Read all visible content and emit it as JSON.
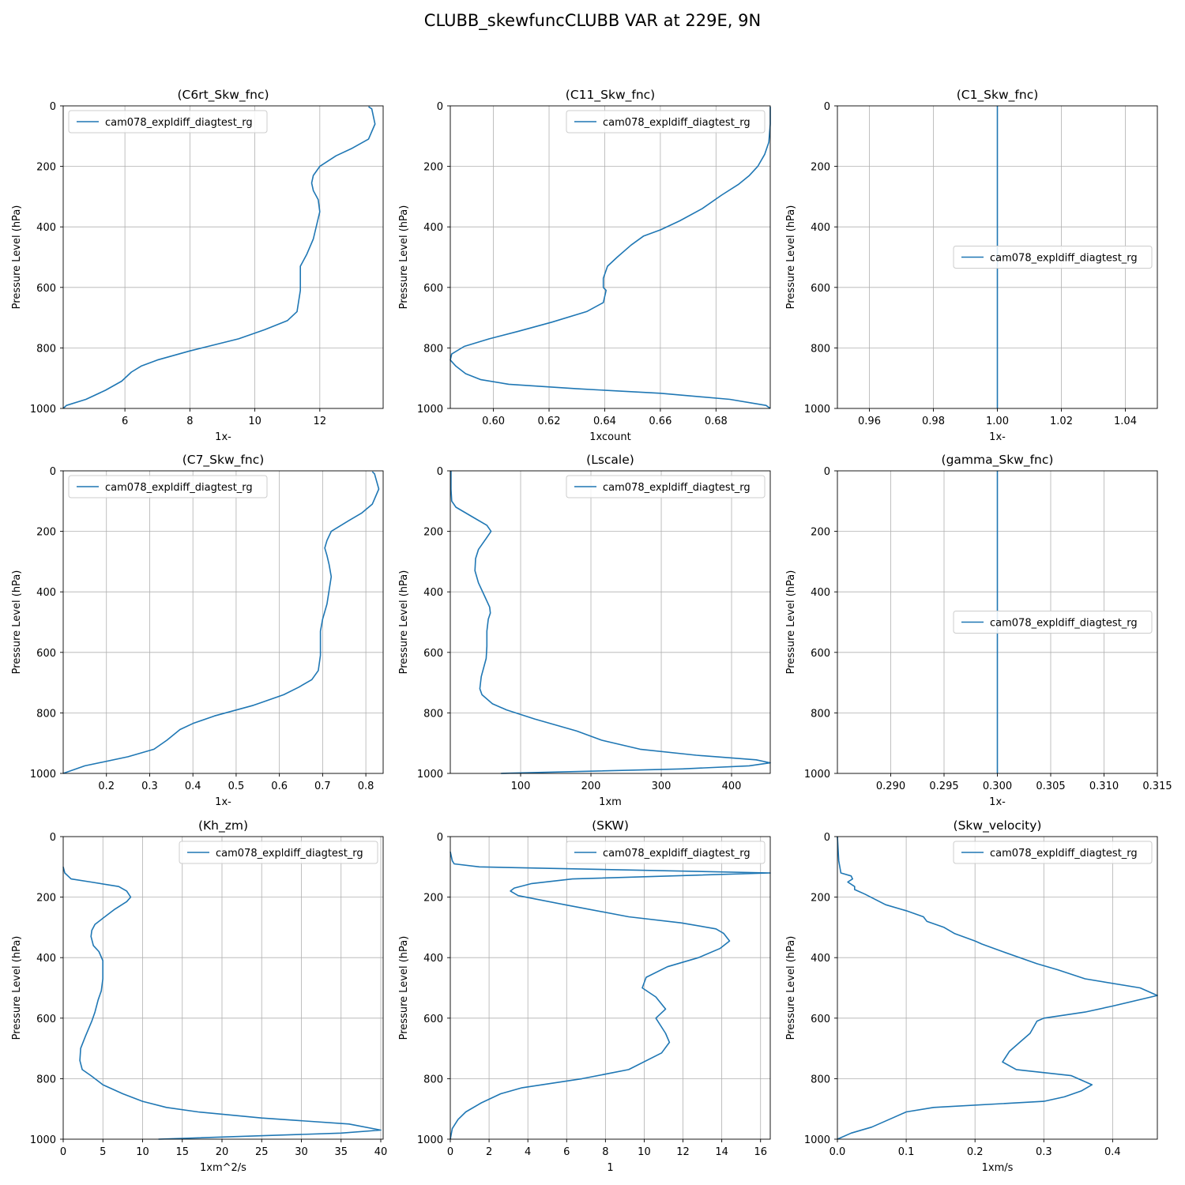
{
  "figure": {
    "title": "CLUBB_skewfuncCLUBB VAR at 229E, 9N"
  },
  "chart_data": [
    {
      "type": "line",
      "title": "(C6rt_Skw_fnc)",
      "xlabel": "1x-",
      "ylabel": "Pressure Level (hPa)",
      "xlim": [
        4.1,
        13.95
      ],
      "ylim": [
        1000,
        0
      ],
      "xticks": [
        6,
        8,
        10,
        12
      ],
      "yticks": [
        0,
        200,
        400,
        600,
        800,
        1000
      ],
      "xtick_labels": [
        "6",
        "8",
        "10",
        "12"
      ],
      "ytick_labels": [
        "0",
        "200",
        "400",
        "600",
        "800",
        "1000"
      ],
      "grid": true,
      "legend": {
        "position": "upper-left",
        "entries": [
          "cam078_expldiff_diagtest_rg"
        ]
      },
      "series": [
        {
          "name": "cam078_expldiff_diagtest_rg",
          "color": "#1f77b4",
          "x": [
            13.5,
            13.6,
            13.7,
            13.5,
            13.0,
            12.5,
            12.0,
            11.8,
            11.75,
            11.8,
            11.95,
            12.0,
            11.8,
            11.6,
            11.4,
            11.4,
            11.4,
            11.3,
            11.0,
            10.3,
            9.5,
            8.0,
            7.0,
            6.5,
            6.2,
            5.9,
            5.4,
            4.8,
            4.2,
            4.1
          ],
          "y": [
            3,
            10,
            60,
            110,
            140,
            165,
            200,
            230,
            255,
            280,
            310,
            350,
            440,
            490,
            530,
            570,
            610,
            680,
            710,
            740,
            770,
            810,
            840,
            860,
            880,
            910,
            940,
            970,
            990,
            1000
          ]
        }
      ]
    },
    {
      "type": "line",
      "title": "(C11_Skw_fnc)",
      "xlabel": "1xcount",
      "ylabel": "Pressure Level (hPa)",
      "xlim": [
        0.5845,
        0.6995
      ],
      "ylim": [
        1000,
        0
      ],
      "xticks": [
        0.6,
        0.62,
        0.64,
        0.66,
        0.68
      ],
      "yticks": [
        0,
        200,
        400,
        600,
        800,
        1000
      ],
      "xtick_labels": [
        "0.60",
        "0.62",
        "0.64",
        "0.66",
        "0.68"
      ],
      "ytick_labels": [
        "0",
        "200",
        "400",
        "600",
        "800",
        "1000"
      ],
      "grid": true,
      "legend": {
        "position": "upper-right",
        "entries": [
          "cam078_expldiff_diagtest_rg"
        ]
      },
      "series": [
        {
          "name": "cam078_expldiff_diagtest_rg",
          "color": "#1f77b4",
          "x": [
            0.6995,
            0.6995,
            0.699,
            0.6975,
            0.695,
            0.692,
            0.688,
            0.682,
            0.675,
            0.667,
            0.66,
            0.654,
            0.6495,
            0.6445,
            0.641,
            0.6395,
            0.6395,
            0.6405,
            0.6395,
            0.6335,
            0.621,
            0.609,
            0.5985,
            0.5895,
            0.585,
            0.5845,
            0.5865,
            0.59,
            0.5955,
            0.6055,
            0.63,
            0.66,
            0.685,
            0.698,
            0.6995
          ],
          "y": [
            3,
            60,
            120,
            160,
            200,
            230,
            260,
            295,
            340,
            380,
            410,
            430,
            460,
            500,
            530,
            570,
            600,
            610,
            650,
            680,
            715,
            745,
            770,
            795,
            820,
            840,
            860,
            885,
            905,
            920,
            935,
            950,
            970,
            990,
            1000
          ]
        }
      ]
    },
    {
      "type": "line",
      "title": "(C1_Skw_fnc)",
      "xlabel": "1x-",
      "ylabel": "Pressure Level (hPa)",
      "xlim": [
        0.95,
        1.05
      ],
      "ylim": [
        1000,
        0
      ],
      "xticks": [
        0.96,
        0.98,
        1.0,
        1.02,
        1.04
      ],
      "yticks": [
        0,
        200,
        400,
        600,
        800,
        1000
      ],
      "xtick_labels": [
        "0.96",
        "0.98",
        "1.00",
        "1.02",
        "1.04"
      ],
      "ytick_labels": [
        "0",
        "200",
        "400",
        "600",
        "800",
        "1000"
      ],
      "grid": true,
      "legend": {
        "position": "center-right",
        "entries": [
          "cam078_expldiff_diagtest_rg"
        ]
      },
      "series": [
        {
          "name": "cam078_expldiff_diagtest_rg",
          "color": "#1f77b4",
          "x": [
            1.0,
            1.0
          ],
          "y": [
            0,
            1000
          ]
        }
      ]
    },
    {
      "type": "line",
      "title": "(C7_Skw_fnc)",
      "xlabel": "1x-",
      "ylabel": "Pressure Level (hPa)",
      "xlim": [
        0.1,
        0.84
      ],
      "ylim": [
        1000,
        0
      ],
      "xticks": [
        0.2,
        0.3,
        0.4,
        0.5,
        0.6,
        0.7,
        0.8
      ],
      "yticks": [
        0,
        200,
        400,
        600,
        800,
        1000
      ],
      "xtick_labels": [
        "0.2",
        "0.3",
        "0.4",
        "0.5",
        "0.6",
        "0.7",
        "0.8"
      ],
      "ytick_labels": [
        "0",
        "200",
        "400",
        "600",
        "800",
        "1000"
      ],
      "grid": true,
      "legend": {
        "position": "upper-left",
        "entries": [
          "cam078_expldiff_diagtest_rg"
        ]
      },
      "series": [
        {
          "name": "cam078_expldiff_diagtest_rg",
          "color": "#1f77b4",
          "x": [
            0.815,
            0.82,
            0.83,
            0.815,
            0.79,
            0.76,
            0.72,
            0.71,
            0.705,
            0.71,
            0.715,
            0.72,
            0.71,
            0.7,
            0.695,
            0.695,
            0.695,
            0.69,
            0.675,
            0.645,
            0.61,
            0.54,
            0.45,
            0.4,
            0.37,
            0.34,
            0.31,
            0.25,
            0.15,
            0.1
          ],
          "y": [
            3,
            10,
            60,
            110,
            140,
            165,
            200,
            230,
            255,
            280,
            310,
            350,
            440,
            490,
            530,
            570,
            610,
            660,
            690,
            715,
            740,
            775,
            810,
            835,
            855,
            890,
            920,
            945,
            975,
            1000
          ]
        }
      ]
    },
    {
      "type": "line",
      "title": "(Lscale)",
      "xlabel": "1xm",
      "ylabel": "Pressure Level (hPa)",
      "xlim": [
        0,
        455
      ],
      "ylim": [
        1000,
        0
      ],
      "xticks": [
        100,
        200,
        300,
        400
      ],
      "yticks": [
        0,
        200,
        400,
        600,
        800,
        1000
      ],
      "xtick_labels": [
        "100",
        "200",
        "300",
        "400"
      ],
      "ytick_labels": [
        "0",
        "200",
        "400",
        "600",
        "800",
        "1000"
      ],
      "grid": true,
      "legend": {
        "position": "upper-right",
        "entries": [
          "cam078_expldiff_diagtest_rg"
        ]
      },
      "series": [
        {
          "name": "cam078_expldiff_diagtest_rg",
          "color": "#1f77b4",
          "x": [
            1,
            1,
            2,
            8,
            30,
            52,
            58,
            52,
            40,
            36,
            35,
            40,
            48,
            56,
            57,
            54,
            52,
            52,
            51,
            44,
            42,
            45,
            60,
            80,
            120,
            180,
            215,
            270,
            350,
            435,
            455,
            425,
            330,
            72
          ],
          "y": [
            0,
            60,
            100,
            120,
            150,
            180,
            200,
            220,
            260,
            290,
            330,
            370,
            410,
            450,
            470,
            490,
            530,
            580,
            620,
            680,
            720,
            740,
            770,
            790,
            820,
            860,
            890,
            920,
            940,
            955,
            965,
            975,
            985,
            1000
          ]
        }
      ]
    },
    {
      "type": "line",
      "title": "(gamma_Skw_fnc)",
      "xlabel": "1x-",
      "ylabel": "Pressure Level (hPa)",
      "xlim": [
        0.285,
        0.315
      ],
      "ylim": [
        1000,
        0
      ],
      "xticks": [
        0.29,
        0.295,
        0.3,
        0.305,
        0.31,
        0.315
      ],
      "yticks": [
        0,
        200,
        400,
        600,
        800,
        1000
      ],
      "xtick_labels": [
        "0.290",
        "0.295",
        "0.300",
        "0.305",
        "0.310",
        "0.315"
      ],
      "ytick_labels": [
        "0",
        "200",
        "400",
        "600",
        "800",
        "1000"
      ],
      "grid": true,
      "legend": {
        "position": "center-right",
        "entries": [
          "cam078_expldiff_diagtest_rg"
        ]
      },
      "series": [
        {
          "name": "cam078_expldiff_diagtest_rg",
          "color": "#1f77b4",
          "x": [
            0.3,
            0.3
          ],
          "y": [
            0,
            1000
          ]
        }
      ]
    },
    {
      "type": "line",
      "title": "(Kh_zm)",
      "xlabel": "1xm^2/s",
      "ylabel": "Pressure Level (hPa)",
      "xlim": [
        0,
        40.3
      ],
      "ylim": [
        1000,
        0
      ],
      "xticks": [
        0,
        5,
        10,
        15,
        20,
        25,
        30,
        35,
        40
      ],
      "yticks": [
        0,
        200,
        400,
        600,
        800,
        1000
      ],
      "xtick_labels": [
        "0",
        "5",
        "10",
        "15",
        "20",
        "25",
        "30",
        "35",
        "40"
      ],
      "ytick_labels": [
        "0",
        "200",
        "400",
        "600",
        "800",
        "1000"
      ],
      "grid": true,
      "legend": {
        "position": "upper-right",
        "entries": [
          "cam078_expldiff_diagtest_rg"
        ]
      },
      "series": [
        {
          "name": "cam078_expldiff_diagtest_rg",
          "color": "#1f77b4",
          "x": [
            0,
            0.2,
            1,
            3.5,
            7,
            8,
            8.5,
            8,
            6.5,
            5,
            4,
            3.6,
            3.5,
            3.8,
            4.5,
            5,
            5,
            4.8,
            4.4,
            4,
            3.6,
            2.8,
            2.2,
            2.1,
            2.4,
            3.5,
            5,
            7.5,
            10,
            13,
            17,
            25,
            36,
            40,
            35,
            12
          ],
          "y": [
            100,
            120,
            140,
            150,
            165,
            180,
            200,
            215,
            240,
            270,
            290,
            310,
            330,
            360,
            380,
            410,
            470,
            510,
            540,
            580,
            610,
            660,
            700,
            740,
            770,
            790,
            820,
            850,
            875,
            895,
            910,
            930,
            950,
            970,
            980,
            1000
          ]
        }
      ]
    },
    {
      "type": "line",
      "title": "(SKW)",
      "xlabel": "1",
      "ylabel": "Pressure Level (hPa)",
      "xlim": [
        0,
        16.5
      ],
      "ylim": [
        1000,
        0
      ],
      "xticks": [
        0,
        2,
        4,
        6,
        8,
        10,
        12,
        14,
        16
      ],
      "yticks": [
        0,
        200,
        400,
        600,
        800,
        1000
      ],
      "xtick_labels": [
        "0",
        "2",
        "4",
        "6",
        "8",
        "10",
        "12",
        "14",
        "16"
      ],
      "ytick_labels": [
        "0",
        "200",
        "400",
        "600",
        "800",
        "1000"
      ],
      "grid": true,
      "legend": {
        "position": "upper-right",
        "entries": [
          "cam078_expldiff_diagtest_rg"
        ]
      },
      "series": [
        {
          "name": "cam078_expldiff_diagtest_rg",
          "color": "#1f77b4",
          "x": [
            0,
            0.1,
            0.2,
            1.5,
            16.5,
            6.3,
            4.2,
            3.3,
            3.1,
            3.5,
            5.9,
            9.2,
            11.9,
            13.7,
            14.1,
            14.4,
            13.9,
            12.8,
            11.2,
            10.1,
            9.9,
            10.6,
            11.1,
            10.6,
            11.1,
            11.3,
            10.9,
            9.2,
            6.8,
            3.7,
            2.6,
            1.6,
            0.8,
            0.4,
            0.1,
            0
          ],
          "y": [
            50,
            80,
            90,
            100,
            120,
            140,
            155,
            170,
            180,
            195,
            225,
            265,
            285,
            305,
            320,
            345,
            370,
            400,
            430,
            465,
            500,
            530,
            570,
            600,
            650,
            680,
            715,
            770,
            800,
            830,
            850,
            880,
            910,
            935,
            965,
            1000
          ]
        }
      ]
    },
    {
      "type": "line",
      "title": "(Skw_velocity)",
      "xlabel": "1xm/s",
      "ylabel": "Pressure Level (hPa)",
      "xlim": [
        0,
        0.465
      ],
      "ylim": [
        1000,
        0
      ],
      "xticks": [
        0.0,
        0.1,
        0.2,
        0.3,
        0.4
      ],
      "yticks": [
        0,
        200,
        400,
        600,
        800,
        1000
      ],
      "xtick_labels": [
        "0.0",
        "0.1",
        "0.2",
        "0.3",
        "0.4"
      ],
      "ytick_labels": [
        "0",
        "200",
        "400",
        "600",
        "800",
        "1000"
      ],
      "grid": true,
      "legend": {
        "position": "upper-right",
        "entries": [
          "cam078_expldiff_diagtest_rg"
        ]
      },
      "series": [
        {
          "name": "cam078_expldiff_diagtest_rg",
          "color": "#1f77b4",
          "x": [
            0,
            0.002,
            0.005,
            0.02,
            0.022,
            0.015,
            0.025,
            0.025,
            0.04,
            0.07,
            0.1,
            0.125,
            0.13,
            0.155,
            0.17,
            0.2,
            0.21,
            0.24,
            0.29,
            0.32,
            0.36,
            0.44,
            0.465,
            0.4,
            0.36,
            0.3,
            0.29,
            0.28,
            0.265,
            0.25,
            0.24,
            0.26,
            0.34,
            0.37,
            0.355,
            0.33,
            0.3,
            0.14,
            0.1,
            0.08,
            0.05,
            0.02,
            0
          ],
          "y": [
            0,
            80,
            120,
            130,
            140,
            150,
            165,
            175,
            190,
            225,
            245,
            265,
            280,
            300,
            320,
            345,
            355,
            380,
            420,
            440,
            470,
            500,
            525,
            560,
            580,
            600,
            610,
            650,
            680,
            710,
            745,
            770,
            790,
            820,
            840,
            860,
            875,
            895,
            910,
            930,
            960,
            980,
            1000
          ]
        }
      ]
    }
  ]
}
